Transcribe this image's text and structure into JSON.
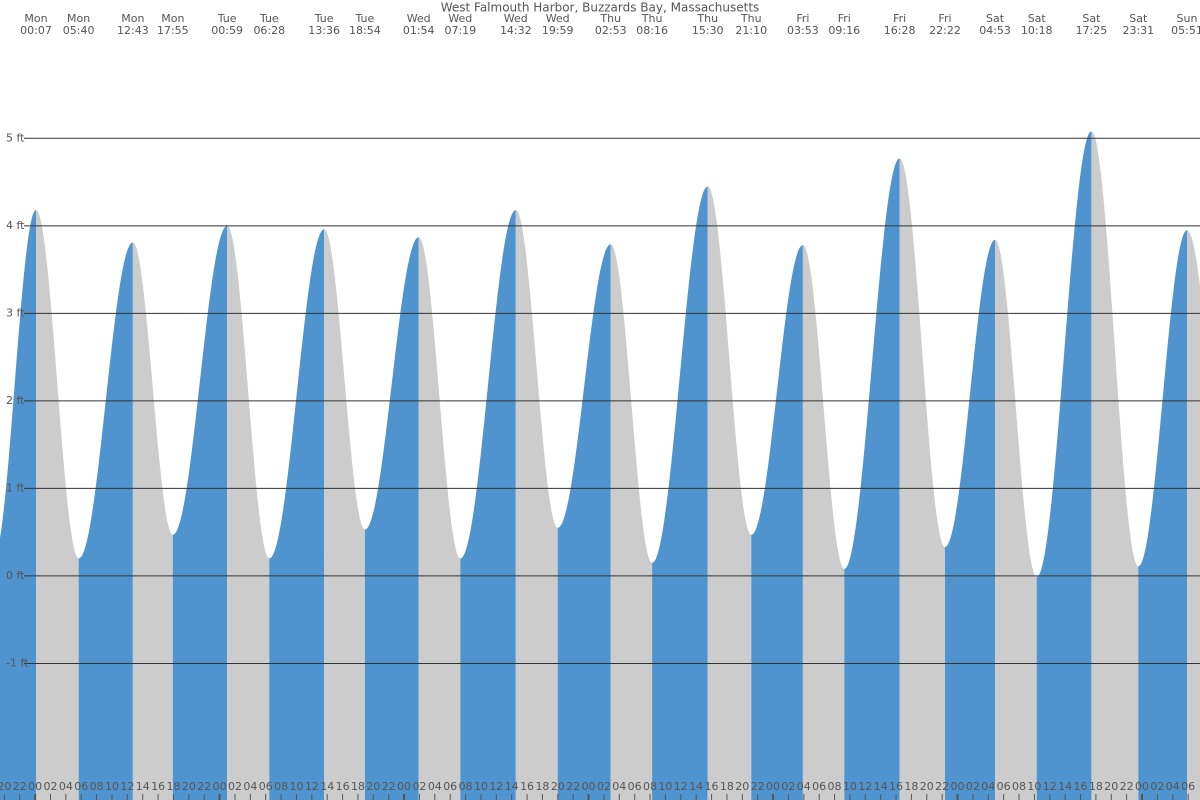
{
  "chart_data": {
    "type": "tide",
    "title": "West Falmouth Harbor, Buzzards Bay, Massachusetts",
    "rising_color": "#4f94cf",
    "falling_color": "#cccccc",
    "extremes": [
      {
        "day": "Mon",
        "time": "00:07",
        "height": 4.18
      },
      {
        "day": "Mon",
        "time": "05:40",
        "height": 0.2
      },
      {
        "day": "Mon",
        "time": "12:43",
        "height": 3.81
      },
      {
        "day": "Mon",
        "time": "17:55",
        "height": 0.47
      },
      {
        "day": "Tue",
        "time": "00:59",
        "height": 4.0
      },
      {
        "day": "Tue",
        "time": "06:28",
        "height": 0.2
      },
      {
        "day": "Tue",
        "time": "13:36",
        "height": 3.96
      },
      {
        "day": "Tue",
        "time": "18:54",
        "height": 0.53
      },
      {
        "day": "Wed",
        "time": "01:54",
        "height": 3.87
      },
      {
        "day": "Wed",
        "time": "07:19",
        "height": 0.2
      },
      {
        "day": "Wed",
        "time": "14:32",
        "height": 4.18
      },
      {
        "day": "Wed",
        "time": "19:59",
        "height": 0.55
      },
      {
        "day": "Thu",
        "time": "02:53",
        "height": 3.79
      },
      {
        "day": "Thu",
        "time": "08:16",
        "height": 0.15
      },
      {
        "day": "Thu",
        "time": "15:30",
        "height": 4.45
      },
      {
        "day": "Thu",
        "time": "21:10",
        "height": 0.47
      },
      {
        "day": "Fri",
        "time": "03:53",
        "height": 3.78
      },
      {
        "day": "Fri",
        "time": "09:16",
        "height": 0.08
      },
      {
        "day": "Fri",
        "time": "16:28",
        "height": 4.77
      },
      {
        "day": "Fri",
        "time": "22:22",
        "height": 0.33
      },
      {
        "day": "Sat",
        "time": "04:53",
        "height": 3.84
      },
      {
        "day": "Sat",
        "time": "10:18",
        "height": -0.01
      },
      {
        "day": "Sat",
        "time": "17:25",
        "height": 5.08
      },
      {
        "day": "Sat",
        "time": "23:31",
        "height": 0.11
      },
      {
        "day": "Sun",
        "time": "05:51",
        "height": 3.95
      }
    ],
    "ylim": [
      -2.56,
      6.58
    ],
    "yticks": [
      {
        "value": -1,
        "label": "-1 ft"
      },
      {
        "value": 0,
        "label": "0 ft"
      },
      {
        "value": 1,
        "label": "1 ft"
      },
      {
        "value": 2,
        "label": "2 ft"
      },
      {
        "value": 3,
        "label": "3 ft"
      },
      {
        "value": 4,
        "label": "4 ft"
      },
      {
        "value": 5,
        "label": "5 ft"
      }
    ],
    "hour_ticks": [
      "20",
      "22",
      "00",
      "02",
      "04",
      "06",
      "08",
      "10",
      "12",
      "14",
      "16",
      "18",
      "20",
      "22",
      "00",
      "02",
      "04",
      "06",
      "08",
      "10",
      "12",
      "14",
      "16",
      "18",
      "20",
      "22",
      "00",
      "02",
      "04",
      "06",
      "08",
      "10",
      "12",
      "14",
      "16",
      "18",
      "20",
      "22",
      "00",
      "02",
      "04",
      "06",
      "08",
      "10",
      "12",
      "14",
      "16",
      "18",
      "20",
      "22",
      "00",
      "02",
      "04",
      "06",
      "08",
      "10",
      "12",
      "14",
      "16",
      "18",
      "20",
      "22",
      "00",
      "02",
      "04",
      "06",
      "08",
      "10",
      "12",
      "14",
      "16",
      "18",
      "20",
      "22",
      "00",
      "02",
      "04",
      "06"
    ],
    "grid": true
  }
}
